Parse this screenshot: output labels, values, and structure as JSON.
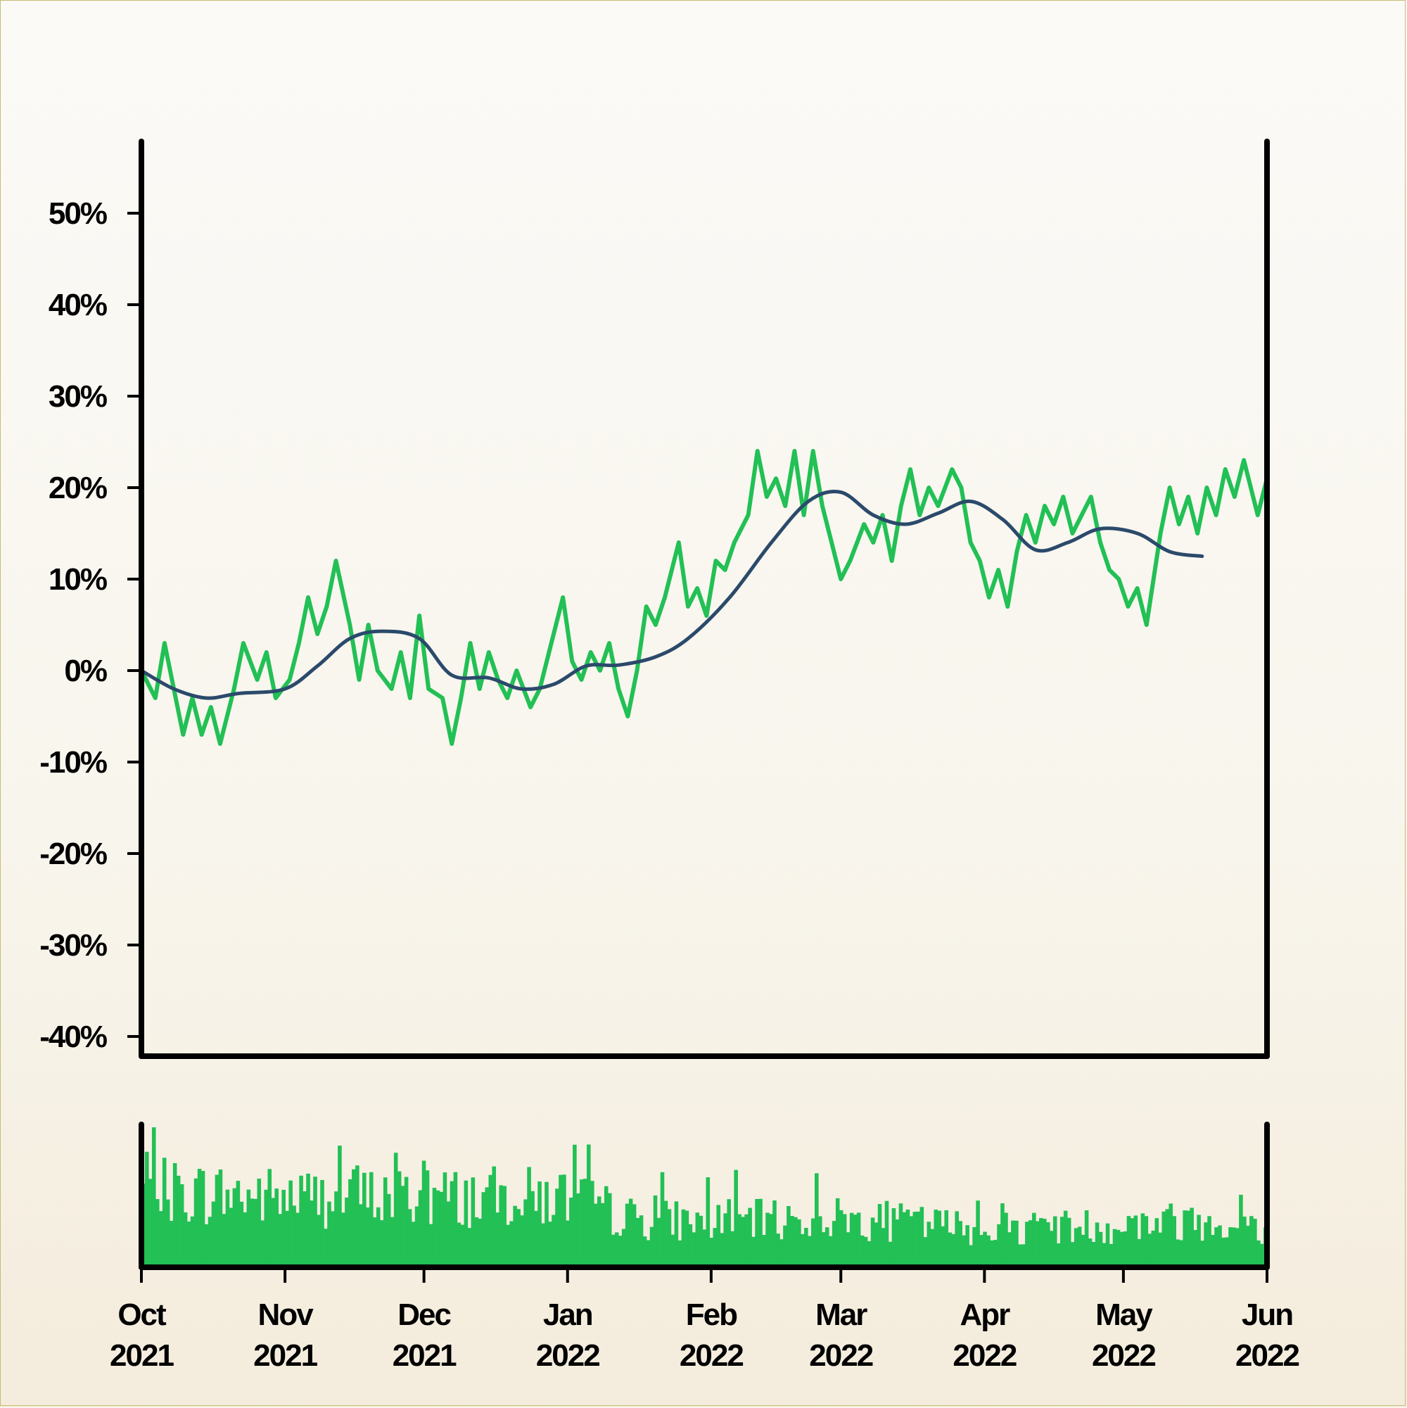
{
  "chart_data": [
    {
      "type": "line",
      "panel": "price",
      "y_tick_labels": [
        "50%",
        "40%",
        "30%",
        "20%",
        "10%",
        "0%",
        "-10%",
        "-20%",
        "-30%",
        "-40%"
      ],
      "y_ticks": [
        50,
        40,
        30,
        20,
        10,
        0,
        -10,
        -20,
        -30,
        -40
      ],
      "ylim": [
        -42,
        58
      ],
      "x_range": [
        "2021-10-01",
        "2022-06-01"
      ],
      "grid": false,
      "colors": {
        "return": "#22c055",
        "moving_average": "#2b4a6b"
      },
      "series": [
        {
          "key": "return",
          "style": "jagged",
          "points": [
            [
              "2021-10-01",
              0
            ],
            [
              "2021-10-04",
              -3
            ],
            [
              "2021-10-06",
              3
            ],
            [
              "2021-10-08",
              -2
            ],
            [
              "2021-10-10",
              -7
            ],
            [
              "2021-10-12",
              -3
            ],
            [
              "2021-10-14",
              -7
            ],
            [
              "2021-10-16",
              -4
            ],
            [
              "2021-10-18",
              -8
            ],
            [
              "2021-10-21",
              -2
            ],
            [
              "2021-10-23",
              3
            ],
            [
              "2021-10-26",
              -1
            ],
            [
              "2021-10-28",
              2
            ],
            [
              "2021-10-30",
              -3
            ],
            [
              "2021-11-02",
              -1
            ],
            [
              "2021-11-04",
              3
            ],
            [
              "2021-11-06",
              8
            ],
            [
              "2021-11-08",
              4
            ],
            [
              "2021-11-10",
              7
            ],
            [
              "2021-11-12",
              12
            ],
            [
              "2021-11-15",
              5
            ],
            [
              "2021-11-17",
              -1
            ],
            [
              "2021-11-19",
              5
            ],
            [
              "2021-11-21",
              0
            ],
            [
              "2021-11-24",
              -2
            ],
            [
              "2021-11-26",
              2
            ],
            [
              "2021-11-28",
              -3
            ],
            [
              "2021-11-30",
              6
            ],
            [
              "2021-12-02",
              -2
            ],
            [
              "2021-12-05",
              -3
            ],
            [
              "2021-12-07",
              -8
            ],
            [
              "2021-12-09",
              -3
            ],
            [
              "2021-12-11",
              3
            ],
            [
              "2021-12-13",
              -2
            ],
            [
              "2021-12-15",
              2
            ],
            [
              "2021-12-17",
              -1
            ],
            [
              "2021-12-19",
              -3
            ],
            [
              "2021-12-21",
              0
            ],
            [
              "2021-12-24",
              -4
            ],
            [
              "2021-12-26",
              -2
            ],
            [
              "2021-12-28",
              2
            ],
            [
              "2021-12-31",
              8
            ],
            [
              "2022-01-02",
              1
            ],
            [
              "2022-01-04",
              -1
            ],
            [
              "2022-01-06",
              2
            ],
            [
              "2022-01-08",
              0
            ],
            [
              "2022-01-10",
              3
            ],
            [
              "2022-01-12",
              -2
            ],
            [
              "2022-01-14",
              -5
            ],
            [
              "2022-01-16",
              0
            ],
            [
              "2022-01-18",
              7
            ],
            [
              "2022-01-20",
              5
            ],
            [
              "2022-01-22",
              8
            ],
            [
              "2022-01-25",
              14
            ],
            [
              "2022-01-27",
              7
            ],
            [
              "2022-01-29",
              9
            ],
            [
              "2022-01-31",
              6
            ],
            [
              "2022-02-02",
              12
            ],
            [
              "2022-02-04",
              11
            ],
            [
              "2022-02-06",
              14
            ],
            [
              "2022-02-09",
              17
            ],
            [
              "2022-02-11",
              24
            ],
            [
              "2022-02-13",
              19
            ],
            [
              "2022-02-15",
              21
            ],
            [
              "2022-02-17",
              18
            ],
            [
              "2022-02-19",
              24
            ],
            [
              "2022-02-21",
              17
            ],
            [
              "2022-02-23",
              24
            ],
            [
              "2022-02-25",
              18
            ],
            [
              "2022-02-27",
              14
            ],
            [
              "2022-03-01",
              10
            ],
            [
              "2022-03-03",
              12
            ],
            [
              "2022-03-06",
              16
            ],
            [
              "2022-03-08",
              14
            ],
            [
              "2022-03-10",
              17
            ],
            [
              "2022-03-12",
              12
            ],
            [
              "2022-03-14",
              18
            ],
            [
              "2022-03-16",
              22
            ],
            [
              "2022-03-18",
              17
            ],
            [
              "2022-03-20",
              20
            ],
            [
              "2022-03-22",
              18
            ],
            [
              "2022-03-25",
              22
            ],
            [
              "2022-03-27",
              20
            ],
            [
              "2022-03-29",
              14
            ],
            [
              "2022-03-31",
              12
            ],
            [
              "2022-04-02",
              8
            ],
            [
              "2022-04-04",
              11
            ],
            [
              "2022-04-06",
              7
            ],
            [
              "2022-04-08",
              13
            ],
            [
              "2022-04-10",
              17
            ],
            [
              "2022-04-12",
              14
            ],
            [
              "2022-04-14",
              18
            ],
            [
              "2022-04-16",
              16
            ],
            [
              "2022-04-18",
              19
            ],
            [
              "2022-04-20",
              15
            ],
            [
              "2022-04-22",
              17
            ],
            [
              "2022-04-24",
              19
            ],
            [
              "2022-04-26",
              14
            ],
            [
              "2022-04-28",
              11
            ],
            [
              "2022-04-30",
              10
            ],
            [
              "2022-05-02",
              7
            ],
            [
              "2022-05-04",
              9
            ],
            [
              "2022-05-06",
              5
            ],
            [
              "2022-05-09",
              15
            ],
            [
              "2022-05-11",
              20
            ],
            [
              "2022-05-13",
              16
            ],
            [
              "2022-05-15",
              19
            ],
            [
              "2022-05-17",
              15
            ],
            [
              "2022-05-19",
              20
            ],
            [
              "2022-05-21",
              17
            ],
            [
              "2022-05-23",
              22
            ],
            [
              "2022-05-25",
              19
            ],
            [
              "2022-05-27",
              23
            ],
            [
              "2022-05-30",
              17
            ],
            [
              "2022-06-01",
              21
            ]
          ]
        },
        {
          "key": "moving_average",
          "style": "smooth",
          "points": [
            [
              "2021-10-01",
              0
            ],
            [
              "2021-10-08",
              -2
            ],
            [
              "2021-10-15",
              -3
            ],
            [
              "2021-10-22",
              -2.5
            ],
            [
              "2021-11-01",
              -2
            ],
            [
              "2021-11-08",
              0.5
            ],
            [
              "2021-11-15",
              3.5
            ],
            [
              "2021-11-22",
              4.3
            ],
            [
              "2021-11-30",
              3.5
            ],
            [
              "2021-12-07",
              -0.5
            ],
            [
              "2021-12-15",
              -0.8
            ],
            [
              "2021-12-22",
              -2
            ],
            [
              "2021-12-29",
              -1.5
            ],
            [
              "2022-01-05",
              0.5
            ],
            [
              "2022-01-12",
              0.6
            ],
            [
              "2022-01-20",
              1.5
            ],
            [
              "2022-01-27",
              3.5
            ],
            [
              "2022-02-05",
              8
            ],
            [
              "2022-02-14",
              14
            ],
            [
              "2022-02-22",
              18.5
            ],
            [
              "2022-03-01",
              19.5
            ],
            [
              "2022-03-08",
              17
            ],
            [
              "2022-03-15",
              16
            ],
            [
              "2022-03-22",
              17.2
            ],
            [
              "2022-03-29",
              18.5
            ],
            [
              "2022-04-05",
              16.5
            ],
            [
              "2022-04-12",
              13.2
            ],
            [
              "2022-04-19",
              14
            ],
            [
              "2022-04-26",
              15.5
            ],
            [
              "2022-05-04",
              15
            ],
            [
              "2022-05-11",
              13
            ],
            [
              "2022-05-18",
              12.5
            ]
          ]
        }
      ]
    },
    {
      "type": "bar",
      "panel": "volume",
      "x_range": [
        "2021-10-01",
        "2022-06-01"
      ],
      "x_tick_labels": [
        {
          "month": "Oct",
          "year": "2021"
        },
        {
          "month": "Nov",
          "year": "2021"
        },
        {
          "month": "Dec",
          "year": "2021"
        },
        {
          "month": "Jan",
          "year": "2022"
        },
        {
          "month": "Feb",
          "year": "2022"
        },
        {
          "month": "Mar",
          "year": "2022"
        },
        {
          "month": "Apr",
          "year": "2022"
        },
        {
          "month": "May",
          "year": "2022"
        },
        {
          "month": "Jun",
          "year": "2022"
        }
      ],
      "x_ticks": [
        "2021-10-01",
        "2021-11-01",
        "2021-12-01",
        "2022-01-01",
        "2022-02-01",
        "2022-03-01",
        "2022-04-01",
        "2022-05-01",
        "2022-06-01"
      ],
      "color": "#22c055",
      "level_profile": [
        [
          "2021-10-01",
          0.55
        ],
        [
          "2021-11-01",
          0.5
        ],
        [
          "2021-12-01",
          0.5
        ],
        [
          "2022-01-01",
          0.5
        ],
        [
          "2022-01-15",
          0.35
        ],
        [
          "2022-02-01",
          0.33
        ],
        [
          "2022-03-01",
          0.35
        ],
        [
          "2022-04-01",
          0.28
        ],
        [
          "2022-05-01",
          0.3
        ],
        [
          "2022-05-20",
          0.35
        ],
        [
          "2022-06-01",
          0.25
        ]
      ]
    }
  ]
}
